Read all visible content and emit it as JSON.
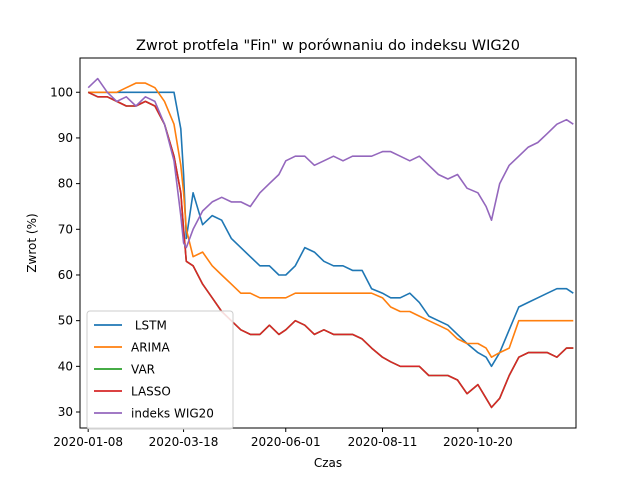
{
  "chart_data": {
    "type": "line",
    "title": "Zwrot protfela \"Fin\" w porównaniu do indeksu WIG20",
    "xlabel": "Czas",
    "ylabel": "Zwrot (%)",
    "xlim": [
      "2020-01-02",
      "2020-12-31"
    ],
    "ylim": [
      26.5,
      107.5
    ],
    "x_ticks": [
      "2020-01-08",
      "2020-03-18",
      "2020-06-01",
      "2020-08-11",
      "2020-10-20"
    ],
    "y_ticks": [
      30,
      40,
      50,
      60,
      70,
      80,
      90,
      100
    ],
    "grid": false,
    "legend_position": "lower-left",
    "x": [
      "2020-01-08",
      "2020-01-15",
      "2020-01-22",
      "2020-01-29",
      "2020-02-05",
      "2020-02-12",
      "2020-02-19",
      "2020-02-26",
      "2020-03-04",
      "2020-03-11",
      "2020-03-16",
      "2020-03-18",
      "2020-03-20",
      "2020-03-25",
      "2020-04-01",
      "2020-04-08",
      "2020-04-15",
      "2020-04-22",
      "2020-04-29",
      "2020-05-06",
      "2020-05-13",
      "2020-05-20",
      "2020-05-27",
      "2020-06-01",
      "2020-06-08",
      "2020-06-15",
      "2020-06-22",
      "2020-06-29",
      "2020-07-06",
      "2020-07-13",
      "2020-07-20",
      "2020-07-27",
      "2020-08-03",
      "2020-08-11",
      "2020-08-17",
      "2020-08-24",
      "2020-08-31",
      "2020-09-07",
      "2020-09-14",
      "2020-09-21",
      "2020-09-28",
      "2020-10-05",
      "2020-10-12",
      "2020-10-20",
      "2020-10-26",
      "2020-10-30",
      "2020-11-05",
      "2020-11-12",
      "2020-11-19",
      "2020-11-26",
      "2020-12-03",
      "2020-12-10",
      "2020-12-17",
      "2020-12-24",
      "2020-12-29"
    ],
    "series": [
      {
        "name": " LSTM",
        "color": "#1f77b4",
        "values": [
          100,
          100,
          100,
          100,
          100,
          100,
          100,
          100,
          100,
          100,
          92,
          82,
          68,
          78,
          71,
          73,
          72,
          68,
          66,
          64,
          62,
          62,
          60,
          60,
          62,
          66,
          65,
          63,
          62,
          62,
          61,
          61,
          57,
          56,
          55,
          55,
          56,
          54,
          51,
          50,
          49,
          47,
          45,
          43,
          42,
          40,
          43,
          48,
          53,
          54,
          55,
          56,
          57,
          57,
          56
        ]
      },
      {
        "name": "ARIMA",
        "color": "#ff7f0e",
        "values": [
          100,
          100,
          100,
          100,
          101,
          102,
          102,
          101,
          98,
          93,
          84,
          78,
          70,
          64,
          65,
          62,
          60,
          58,
          56,
          56,
          55,
          55,
          55,
          55,
          56,
          56,
          56,
          56,
          56,
          56,
          56,
          56,
          56,
          55,
          53,
          52,
          52,
          51,
          50,
          49,
          48,
          46,
          45,
          45,
          44,
          42,
          43,
          44,
          50,
          50,
          50,
          50,
          50,
          50,
          50
        ]
      },
      {
        "name": "VAR",
        "color": "#2ca02c",
        "values": [
          100,
          99,
          99,
          98,
          97,
          97,
          98,
          97,
          93,
          86,
          78,
          70,
          63,
          62,
          58,
          55,
          52,
          50,
          48,
          47,
          47,
          49,
          47,
          48,
          50,
          49,
          47,
          48,
          47,
          47,
          47,
          46,
          44,
          42,
          41,
          40,
          40,
          40,
          38,
          38,
          38,
          37,
          34,
          36,
          33,
          31,
          33,
          38,
          42,
          43,
          43,
          43,
          42,
          44,
          44
        ]
      },
      {
        "name": "LASSO",
        "color": "#d62728",
        "values": [
          100,
          99,
          99,
          98,
          97,
          97,
          98,
          97,
          93,
          86,
          78,
          70,
          63,
          62,
          58,
          55,
          52,
          50,
          48,
          47,
          47,
          49,
          47,
          48,
          50,
          49,
          47,
          48,
          47,
          47,
          47,
          46,
          44,
          42,
          41,
          40,
          40,
          40,
          38,
          38,
          38,
          37,
          34,
          36,
          33,
          31,
          33,
          38,
          42,
          43,
          43,
          43,
          42,
          44,
          44
        ]
      },
      {
        "name": "indeks WIG20",
        "color": "#9467bd",
        "values": [
          101,
          103,
          100,
          98,
          99,
          97,
          99,
          98,
          93,
          85,
          73,
          67,
          66,
          70,
          74,
          76,
          77,
          76,
          76,
          75,
          78,
          80,
          82,
          85,
          86,
          86,
          84,
          85,
          86,
          85,
          86,
          86,
          86,
          87,
          87,
          86,
          85,
          86,
          84,
          82,
          81,
          82,
          79,
          78,
          75,
          72,
          80,
          84,
          86,
          88,
          89,
          91,
          93,
          94,
          93
        ]
      }
    ]
  }
}
